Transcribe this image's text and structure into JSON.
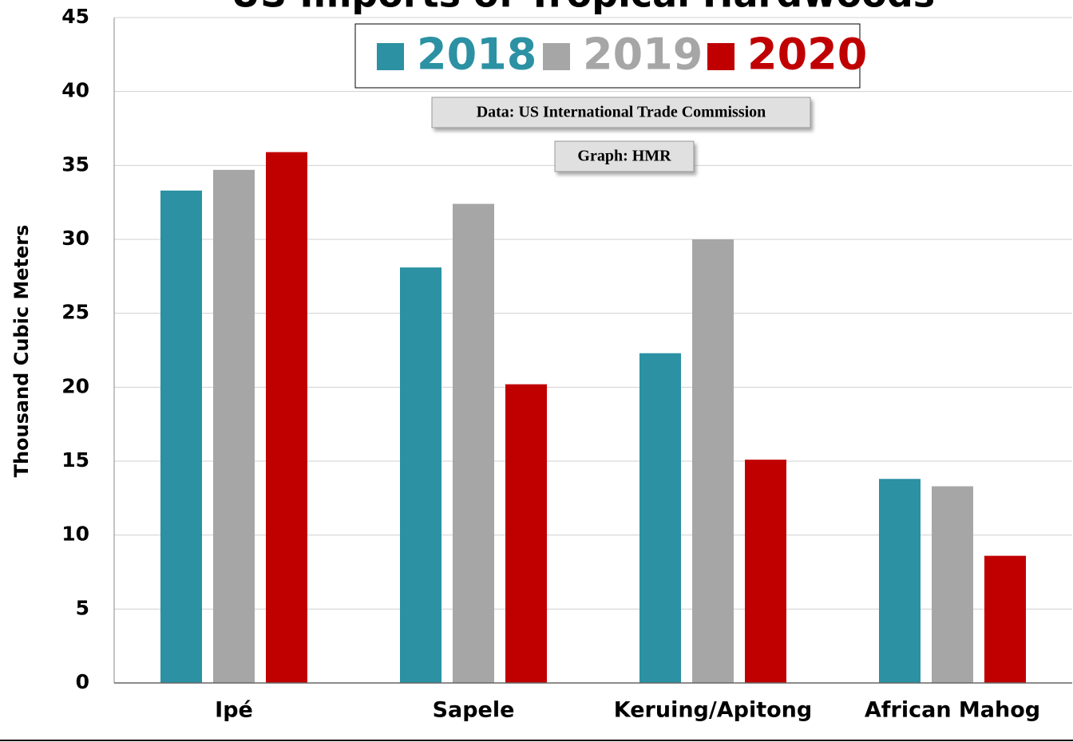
{
  "chart_data": {
    "type": "bar",
    "title": "US Imports of Tropical Hardwoods",
    "y_label": "Thousand Cubic Meters",
    "annotations": [
      "Data: US International Trade Commission",
      "Graph: HMR"
    ],
    "categories": [
      "Ipé",
      "Sapele",
      "Keruing/Apitong",
      "African Mahog"
    ],
    "series": [
      {
        "name": "2018",
        "color": "#2b91a3",
        "values": [
          33.3,
          28.1,
          22.3,
          13.8
        ]
      },
      {
        "name": "2019",
        "color": "#a6a6a6",
        "values": [
          34.7,
          32.4,
          30.0,
          13.3
        ]
      },
      {
        "name": "2020",
        "color": "#c00000",
        "values": [
          35.9,
          20.2,
          15.1,
          8.6
        ]
      }
    ],
    "ylim": [
      0,
      45
    ],
    "yticks": [
      0,
      5,
      10,
      15,
      20,
      25,
      30,
      35,
      40,
      45
    ],
    "grid": true
  }
}
